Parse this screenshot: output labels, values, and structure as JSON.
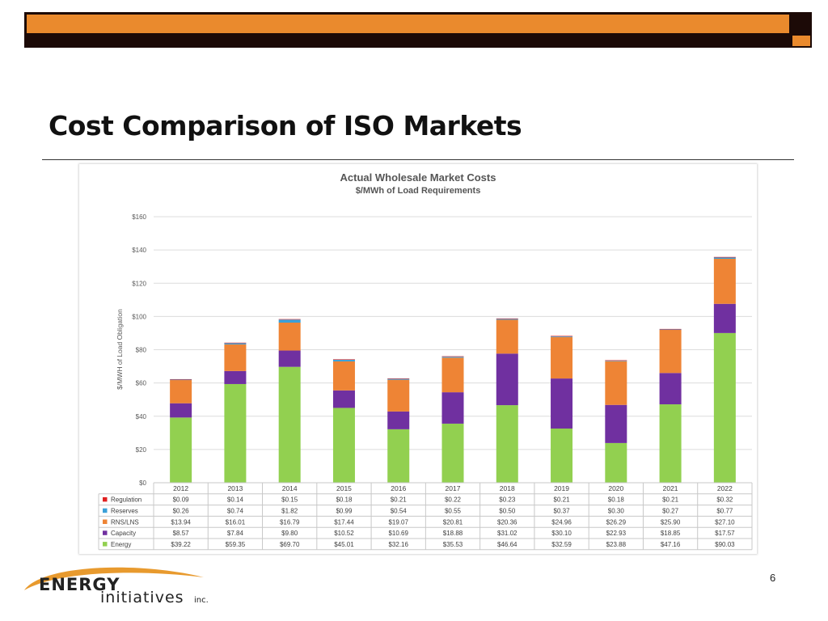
{
  "slide": {
    "title": "Cost Comparison of ISO Markets",
    "page_number": "6",
    "logo": {
      "line1": "ENERGY",
      "line2": "initiatives",
      "suffix": "inc."
    }
  },
  "colors": {
    "bar_dark": "#1c0a07",
    "bar_orange": "#ea8a2d",
    "Regulation": "#e02020",
    "Reserves": "#3aa0d8",
    "RNS/LNS": "#ee8435",
    "Capacity": "#7030a0",
    "Energy": "#92d050"
  },
  "chart_data": {
    "type": "bar",
    "stacked": true,
    "title": "Actual Wholesale Market Costs",
    "subtitle": "$/MWh of Load Requirements",
    "xlabel": "",
    "ylabel": "$/MWH of Load Obligation",
    "ylim": [
      0,
      160
    ],
    "yticks": [
      0,
      20,
      40,
      60,
      80,
      100,
      120,
      140,
      160
    ],
    "ytick_labels": [
      "$0",
      "$20",
      "$40",
      "$60",
      "$80",
      "$100",
      "$120",
      "$140",
      "$160"
    ],
    "grid": true,
    "legend": "data-table-left",
    "categories": [
      "2012",
      "2013",
      "2014",
      "2015",
      "2016",
      "2017",
      "2018",
      "2019",
      "2020",
      "2021",
      "2022"
    ],
    "series": [
      {
        "name": "Regulation",
        "values": [
          0.09,
          0.14,
          0.15,
          0.18,
          0.21,
          0.22,
          0.23,
          0.21,
          0.18,
          0.21,
          0.32
        ],
        "labels": [
          "$0.09",
          "$0.14",
          "$0.15",
          "$0.18",
          "$0.21",
          "$0.22",
          "$0.23",
          "$0.21",
          "$0.18",
          "$0.21",
          "$0.32"
        ]
      },
      {
        "name": "Reserves",
        "values": [
          0.26,
          0.74,
          1.82,
          0.99,
          0.54,
          0.55,
          0.5,
          0.37,
          0.3,
          0.27,
          0.77
        ],
        "labels": [
          "$0.26",
          "$0.74",
          "$1.82",
          "$0.99",
          "$0.54",
          "$0.55",
          "$0.50",
          "$0.37",
          "$0.30",
          "$0.27",
          "$0.77"
        ]
      },
      {
        "name": "RNS/LNS",
        "values": [
          13.94,
          16.01,
          16.79,
          17.44,
          19.07,
          20.81,
          20.36,
          24.96,
          26.29,
          25.9,
          27.1
        ],
        "labels": [
          "$13.94",
          "$16.01",
          "$16.79",
          "$17.44",
          "$19.07",
          "$20.81",
          "$20.36",
          "$24.96",
          "$26.29",
          "$25.90",
          "$27.10"
        ]
      },
      {
        "name": "Capacity",
        "values": [
          8.57,
          7.84,
          9.8,
          10.52,
          10.69,
          18.88,
          31.02,
          30.1,
          22.93,
          18.85,
          17.57
        ],
        "labels": [
          "$8.57",
          "$7.84",
          "$9.80",
          "$10.52",
          "$10.69",
          "$18.88",
          "$31.02",
          "$30.10",
          "$22.93",
          "$18.85",
          "$17.57"
        ]
      },
      {
        "name": "Energy",
        "values": [
          39.22,
          59.35,
          69.7,
          45.01,
          32.16,
          35.53,
          46.64,
          32.59,
          23.88,
          47.16,
          90.03
        ],
        "labels": [
          "$39.22",
          "$59.35",
          "$69.70",
          "$45.01",
          "$32.16",
          "$35.53",
          "$46.64",
          "$32.59",
          "$23.88",
          "$47.16",
          "$90.03"
        ]
      }
    ]
  }
}
